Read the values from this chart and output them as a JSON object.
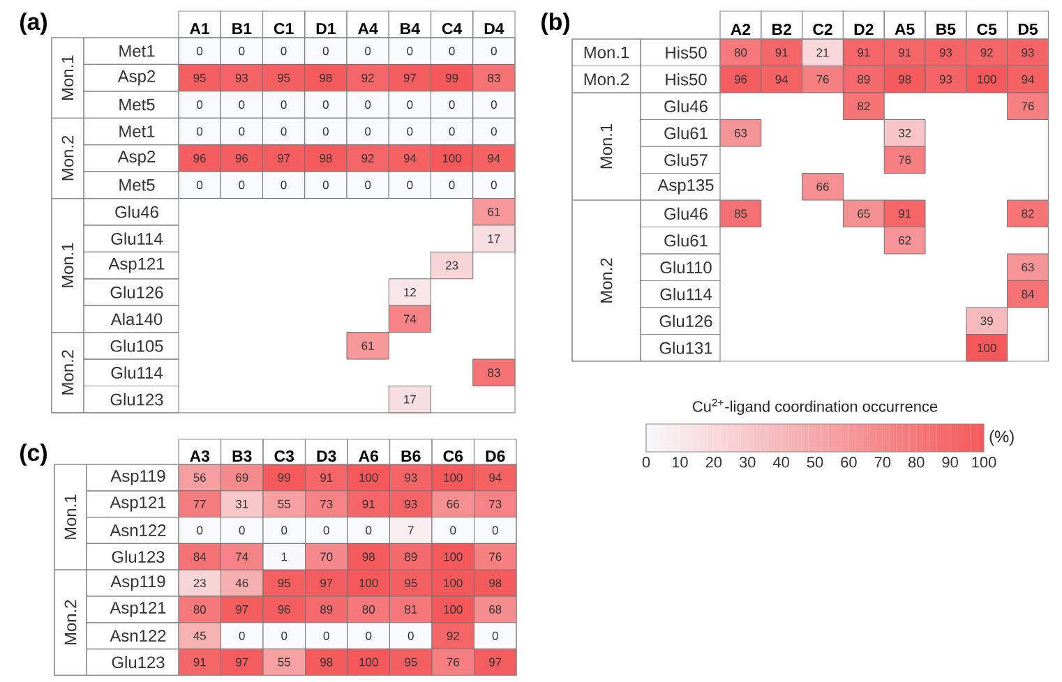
{
  "chart_data": [
    {
      "type": "heatmap",
      "title": "(a)",
      "categories": [
        "A1",
        "B1",
        "C1",
        "D1",
        "A4",
        "B4",
        "C4",
        "D4"
      ],
      "y_categories": [
        "Met1",
        "Asp2",
        "Met5",
        "Met1",
        "Asp2",
        "Met5",
        "Glu46",
        "Glu114",
        "Asp121",
        "Glu126",
        "Ala140",
        "Glu105",
        "Glu114",
        "Glu123"
      ],
      "cells": [
        [
          0,
          0,
          0,
          0,
          0,
          0,
          0,
          0
        ],
        [
          95,
          93,
          95,
          98,
          92,
          97,
          99,
          83
        ],
        [
          0,
          0,
          0,
          0,
          0,
          0,
          0,
          0
        ],
        [
          0,
          0,
          0,
          0,
          0,
          0,
          0,
          0
        ],
        [
          96,
          96,
          97,
          98,
          92,
          94,
          100,
          94
        ],
        [
          0,
          0,
          0,
          0,
          0,
          0,
          0,
          0
        ],
        [
          null,
          null,
          null,
          null,
          null,
          null,
          null,
          61
        ],
        [
          null,
          null,
          null,
          null,
          null,
          null,
          null,
          17
        ],
        [
          null,
          null,
          null,
          null,
          null,
          null,
          23,
          null
        ],
        [
          null,
          null,
          null,
          null,
          null,
          12,
          null,
          null
        ],
        [
          null,
          null,
          null,
          null,
          null,
          74,
          null,
          null
        ],
        [
          null,
          null,
          null,
          null,
          61,
          null,
          null,
          null
        ],
        [
          null,
          null,
          null,
          null,
          null,
          null,
          null,
          83
        ],
        [
          null,
          null,
          null,
          null,
          null,
          17,
          null,
          null
        ]
      ],
      "data_labels": true,
      "annotations": [
        "Mon.1",
        "Mon.2",
        "Mon.1",
        "Mon.2"
      ]
    },
    {
      "type": "heatmap",
      "title": "(b)",
      "categories": [
        "A2",
        "B2",
        "C2",
        "D2",
        "A5",
        "B5",
        "C5",
        "D5"
      ],
      "y_categories": [
        "His50",
        "His50",
        "Glu46",
        "Glu61",
        "Glu57",
        "Asp135",
        "Glu46",
        "Glu61",
        "Glu110",
        "Glu114",
        "Glu126",
        "Glu131"
      ],
      "cells": [
        [
          80,
          91,
          21,
          91,
          91,
          93,
          92,
          93
        ],
        [
          96,
          94,
          76,
          89,
          98,
          93,
          100,
          94
        ],
        [
          null,
          null,
          null,
          82,
          null,
          null,
          null,
          76
        ],
        [
          63,
          null,
          null,
          null,
          32,
          null,
          null,
          null
        ],
        [
          null,
          null,
          null,
          null,
          76,
          null,
          null,
          null
        ],
        [
          null,
          null,
          66,
          null,
          null,
          null,
          null,
          null
        ],
        [
          85,
          null,
          null,
          65,
          91,
          null,
          null,
          82
        ],
        [
          null,
          null,
          null,
          null,
          62,
          null,
          null,
          null
        ],
        [
          null,
          null,
          null,
          null,
          null,
          null,
          null,
          63
        ],
        [
          null,
          null,
          null,
          null,
          null,
          null,
          null,
          84
        ],
        [
          null,
          null,
          null,
          null,
          null,
          null,
          39,
          null
        ],
        [
          null,
          null,
          null,
          null,
          null,
          null,
          100,
          null
        ]
      ],
      "clim": [
        0,
        100
      ],
      "cticks": [
        0,
        10,
        20,
        30,
        40,
        50,
        60,
        70,
        80,
        90,
        100
      ],
      "clabel": "Cu$^{2+}$-ligand coordination occurrence",
      "data_labels": true,
      "annotations": [
        "Mon.1",
        "Mon.2",
        "Mon.1",
        "Mon.2",
        "(%)"
      ]
    },
    {
      "type": "heatmap",
      "title": "(c)",
      "categories": [
        "A3",
        "B3",
        "C3",
        "D3",
        "A6",
        "B6",
        "C6",
        "D6"
      ],
      "y_categories": [
        "Asp119",
        "Asp121",
        "Asn122",
        "Glu123",
        "Asp119",
        "Asp121",
        "Asn122",
        "Glu123"
      ],
      "cells": [
        [
          56,
          69,
          99,
          91,
          100,
          93,
          100,
          94
        ],
        [
          77,
          31,
          55,
          73,
          91,
          93,
          66,
          73
        ],
        [
          0,
          0,
          0,
          0,
          0,
          7,
          0,
          0
        ],
        [
          84,
          74,
          1,
          70,
          98,
          89,
          100,
          76
        ],
        [
          23,
          46,
          95,
          97,
          100,
          95,
          100,
          98
        ],
        [
          80,
          97,
          96,
          89,
          80,
          81,
          100,
          68
        ],
        [
          45,
          0,
          0,
          0,
          0,
          0,
          92,
          0
        ],
        [
          91,
          97,
          55,
          98,
          100,
          95,
          76,
          97
        ]
      ],
      "data_labels": true,
      "annotations": [
        "Mon.1",
        "Mon.2"
      ]
    }
  ]
}
